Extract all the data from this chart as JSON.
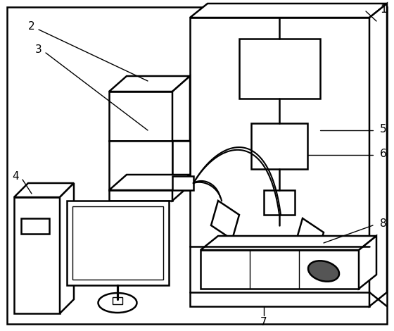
{
  "bg_color": "#ffffff",
  "line_color": "#000000",
  "lw": 1.8,
  "lw_thin": 1.0,
  "fig_w": 5.6,
  "fig_h": 4.7,
  "dpi": 100
}
